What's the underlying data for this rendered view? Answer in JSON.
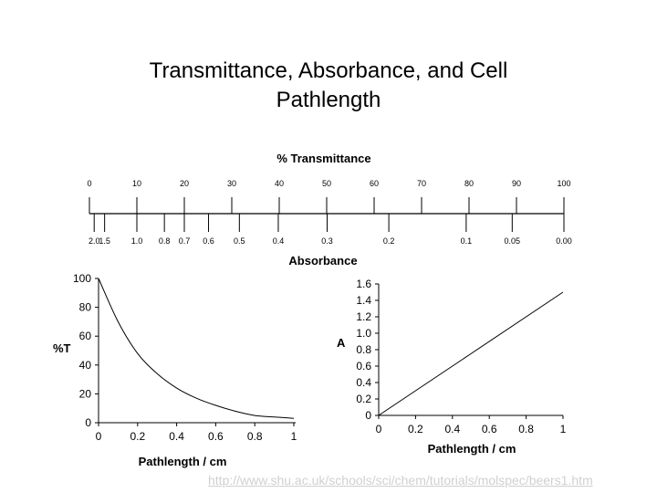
{
  "slide": {
    "title_line1": "Transmittance, Absorbance, and Cell",
    "title_line2": "Pathlength",
    "source_link": "http://www.shu.ac.uk/schools/sci/chem/tutorials/molspec/beers1.htm"
  },
  "chart_data": [
    {
      "type": "scale",
      "title": "% Transmittance",
      "top_label": "% Transmittance",
      "bottom_label": "Absorbance",
      "percent_T_ticks": [
        0,
        10,
        20,
        30,
        40,
        50,
        60,
        70,
        80,
        90,
        100
      ],
      "percent_T_tick_labels": [
        "0",
        "10",
        "20",
        "30",
        "40",
        "50",
        "60",
        "70",
        "80",
        "90",
        "100"
      ],
      "absorbance_ticks": [
        {
          "label": "2.0",
          "percent_T": 1
        },
        {
          "label": "1.5",
          "percent_T": 3.2
        },
        {
          "label": "1.0",
          "percent_T": 10
        },
        {
          "label": "0.8",
          "percent_T": 15.8
        },
        {
          "label": "0.7",
          "percent_T": 20
        },
        {
          "label": "0.6",
          "percent_T": 25.1
        },
        {
          "label": "0.5",
          "percent_T": 31.6
        },
        {
          "label": "0.4",
          "percent_T": 39.8
        },
        {
          "label": "0.3",
          "percent_T": 50.1
        },
        {
          "label": "0.2",
          "percent_T": 63.1
        },
        {
          "label": "0.1",
          "percent_T": 79.4
        },
        {
          "label": "0.05",
          "percent_T": 89.1
        },
        {
          "label": "0.00",
          "percent_T": 100
        }
      ]
    },
    {
      "type": "line",
      "title": "",
      "xlabel": "Pathlength / cm",
      "ylabel": "%T",
      "xlim": [
        0,
        1
      ],
      "ylim": [
        0,
        100
      ],
      "xticks": [
        0,
        0.2,
        0.4,
        0.6,
        0.8,
        1
      ],
      "xtick_labels": [
        "0",
        "0.2",
        "0.4",
        "0.6",
        "0.8",
        "1"
      ],
      "yticks": [
        0,
        20,
        40,
        60,
        80,
        100
      ],
      "ytick_labels": [
        "0",
        "20",
        "40",
        "60",
        "80",
        "100"
      ],
      "x": [
        0,
        0.1,
        0.2,
        0.3,
        0.4,
        0.5,
        0.6,
        0.7,
        0.8,
        0.9,
        1
      ],
      "y": [
        100,
        70,
        48,
        34,
        24,
        17,
        12,
        8,
        5,
        4,
        3
      ]
    },
    {
      "type": "line",
      "title": "",
      "xlabel": "Pathlength / cm",
      "ylabel": "A",
      "xlim": [
        0,
        1
      ],
      "ylim": [
        0,
        1.6
      ],
      "xticks": [
        0,
        0.2,
        0.4,
        0.6,
        0.8,
        1
      ],
      "xtick_labels": [
        "0",
        "0.2",
        "0.4",
        "0.6",
        "0.8",
        "1"
      ],
      "yticks": [
        0,
        0.2,
        0.4,
        0.6,
        0.8,
        1.0,
        1.2,
        1.4,
        1.6
      ],
      "ytick_labels": [
        "0",
        "0.2",
        "0.4",
        "0.6",
        "0.8",
        "1.0",
        "1.2",
        "1.4",
        "1.6"
      ],
      "x": [
        0,
        1
      ],
      "y": [
        0,
        1.5
      ]
    }
  ]
}
